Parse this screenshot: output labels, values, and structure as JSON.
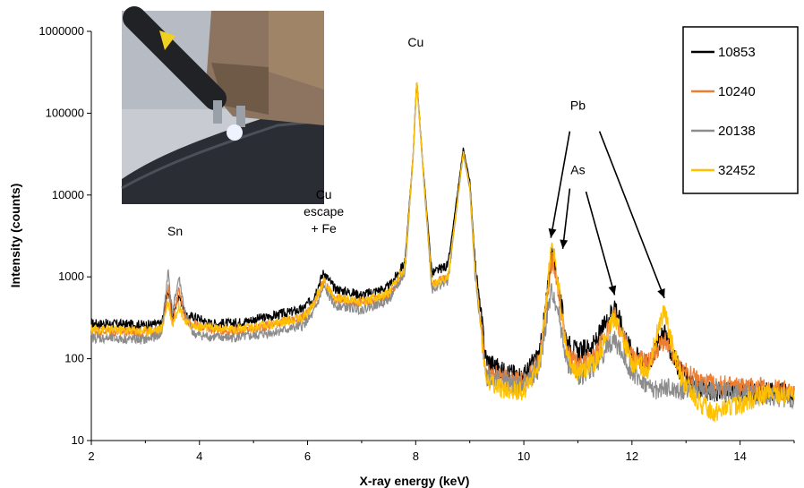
{
  "chart_data": {
    "type": "line",
    "xlabel": "X-ray energy (keV)",
    "ylabel": "Intensity (counts)",
    "xlim": [
      2,
      15
    ],
    "ylim": [
      10,
      1000000
    ],
    "yscale": "log",
    "x_ticks": [
      "2",
      "4",
      "6",
      "8",
      "10",
      "12",
      "14"
    ],
    "y_ticks": [
      "10",
      "100",
      "1000",
      "10000",
      "100000",
      "1000000"
    ],
    "legend_position": "top-right",
    "series": [
      {
        "name": "10853",
        "color": "#000000",
        "points": [
          [
            2.0,
            270
          ],
          [
            2.5,
            265
          ],
          [
            3.0,
            260
          ],
          [
            3.3,
            265
          ],
          [
            3.42,
            700
          ],
          [
            3.5,
            320
          ],
          [
            3.62,
            620
          ],
          [
            3.75,
            320
          ],
          [
            3.9,
            330
          ],
          [
            4.2,
            270
          ],
          [
            4.6,
            270
          ],
          [
            5.0,
            300
          ],
          [
            5.5,
            350
          ],
          [
            5.9,
            400
          ],
          [
            6.1,
            550
          ],
          [
            6.3,
            1150
          ],
          [
            6.5,
            720
          ],
          [
            7.0,
            600
          ],
          [
            7.5,
            750
          ],
          [
            7.8,
            1500
          ],
          [
            7.95,
            30000
          ],
          [
            8.02,
            265000
          ],
          [
            8.12,
            30000
          ],
          [
            8.3,
            1100
          ],
          [
            8.6,
            1400
          ],
          [
            8.88,
            37000
          ],
          [
            9.0,
            15000
          ],
          [
            9.1,
            1500
          ],
          [
            9.3,
            100
          ],
          [
            9.6,
            70
          ],
          [
            10.0,
            62
          ],
          [
            10.3,
            120
          ],
          [
            10.45,
            800
          ],
          [
            10.52,
            2300
          ],
          [
            10.62,
            900
          ],
          [
            10.8,
            160
          ],
          [
            11.0,
            120
          ],
          [
            11.3,
            150
          ],
          [
            11.55,
            300
          ],
          [
            11.68,
            480
          ],
          [
            11.8,
            260
          ],
          [
            12.0,
            120
          ],
          [
            12.3,
            85
          ],
          [
            12.5,
            160
          ],
          [
            12.6,
            230
          ],
          [
            12.7,
            130
          ],
          [
            12.9,
            70
          ],
          [
            13.2,
            45
          ],
          [
            13.5,
            40
          ],
          [
            14.0,
            38
          ],
          [
            14.5,
            42
          ],
          [
            15.0,
            36
          ]
        ]
      },
      {
        "name": "10240",
        "color": "#ed7d31",
        "points": [
          [
            2.0,
            220
          ],
          [
            2.5,
            215
          ],
          [
            3.0,
            210
          ],
          [
            3.3,
            220
          ],
          [
            3.42,
            750
          ],
          [
            3.5,
            280
          ],
          [
            3.62,
            680
          ],
          [
            3.75,
            300
          ],
          [
            3.9,
            260
          ],
          [
            4.2,
            230
          ],
          [
            4.6,
            220
          ],
          [
            5.0,
            230
          ],
          [
            5.5,
            280
          ],
          [
            5.9,
            310
          ],
          [
            6.1,
            430
          ],
          [
            6.3,
            880
          ],
          [
            6.5,
            540
          ],
          [
            7.0,
            480
          ],
          [
            7.5,
            580
          ],
          [
            7.8,
            1200
          ],
          [
            7.95,
            28000
          ],
          [
            8.02,
            250000
          ],
          [
            8.12,
            28000
          ],
          [
            8.3,
            800
          ],
          [
            8.6,
            1000
          ],
          [
            8.88,
            33000
          ],
          [
            9.0,
            13000
          ],
          [
            9.1,
            1200
          ],
          [
            9.3,
            70
          ],
          [
            9.6,
            58
          ],
          [
            10.0,
            52
          ],
          [
            10.3,
            100
          ],
          [
            10.45,
            700
          ],
          [
            10.52,
            1600
          ],
          [
            10.62,
            800
          ],
          [
            10.8,
            120
          ],
          [
            11.0,
            80
          ],
          [
            11.3,
            110
          ],
          [
            11.55,
            220
          ],
          [
            11.68,
            330
          ],
          [
            11.8,
            210
          ],
          [
            12.0,
            110
          ],
          [
            12.3,
            90
          ],
          [
            12.5,
            140
          ],
          [
            12.6,
            165
          ],
          [
            12.7,
            120
          ],
          [
            12.9,
            75
          ],
          [
            13.2,
            55
          ],
          [
            13.5,
            48
          ],
          [
            14.0,
            46
          ],
          [
            14.5,
            44
          ],
          [
            15.0,
            40
          ]
        ]
      },
      {
        "name": "20138",
        "color": "#8c8c8c",
        "points": [
          [
            2.0,
            180
          ],
          [
            2.5,
            175
          ],
          [
            3.0,
            170
          ],
          [
            3.3,
            200
          ],
          [
            3.42,
            1200
          ],
          [
            3.5,
            350
          ],
          [
            3.62,
            1000
          ],
          [
            3.75,
            320
          ],
          [
            3.9,
            200
          ],
          [
            4.2,
            185
          ],
          [
            4.6,
            180
          ],
          [
            5.0,
            190
          ],
          [
            5.5,
            220
          ],
          [
            5.9,
            250
          ],
          [
            6.1,
            350
          ],
          [
            6.3,
            750
          ],
          [
            6.5,
            450
          ],
          [
            7.0,
            400
          ],
          [
            7.5,
            520
          ],
          [
            7.8,
            1100
          ],
          [
            7.95,
            27000
          ],
          [
            8.02,
            240000
          ],
          [
            8.12,
            27000
          ],
          [
            8.3,
            700
          ],
          [
            8.6,
            900
          ],
          [
            8.88,
            32000
          ],
          [
            9.0,
            12000
          ],
          [
            9.1,
            1000
          ],
          [
            9.3,
            60
          ],
          [
            9.6,
            52
          ],
          [
            10.0,
            45
          ],
          [
            10.3,
            80
          ],
          [
            10.45,
            400
          ],
          [
            10.52,
            680
          ],
          [
            10.62,
            420
          ],
          [
            10.8,
            90
          ],
          [
            11.0,
            60
          ],
          [
            11.3,
            80
          ],
          [
            11.55,
            140
          ],
          [
            11.68,
            170
          ],
          [
            11.8,
            120
          ],
          [
            12.0,
            70
          ],
          [
            12.3,
            45
          ],
          [
            12.5,
            40
          ],
          [
            12.6,
            45
          ],
          [
            12.7,
            42
          ],
          [
            12.9,
            40
          ],
          [
            13.2,
            42
          ],
          [
            13.5,
            40
          ],
          [
            14.0,
            38
          ],
          [
            14.5,
            35
          ],
          [
            15.0,
            32
          ]
        ]
      },
      {
        "name": "32452",
        "color": "#ffc000",
        "points": [
          [
            2.0,
            230
          ],
          [
            2.5,
            225
          ],
          [
            3.0,
            220
          ],
          [
            3.3,
            230
          ],
          [
            3.42,
            500
          ],
          [
            3.5,
            260
          ],
          [
            3.62,
            450
          ],
          [
            3.75,
            270
          ],
          [
            3.9,
            250
          ],
          [
            4.2,
            240
          ],
          [
            4.6,
            230
          ],
          [
            5.0,
            240
          ],
          [
            5.5,
            280
          ],
          [
            5.9,
            320
          ],
          [
            6.1,
            450
          ],
          [
            6.3,
            900
          ],
          [
            6.5,
            560
          ],
          [
            7.0,
            500
          ],
          [
            7.5,
            620
          ],
          [
            7.8,
            1300
          ],
          [
            7.95,
            29000
          ],
          [
            8.02,
            255000
          ],
          [
            8.12,
            29000
          ],
          [
            8.3,
            800
          ],
          [
            8.6,
            1000
          ],
          [
            8.88,
            34000
          ],
          [
            9.0,
            13000
          ],
          [
            9.1,
            1200
          ],
          [
            9.3,
            55
          ],
          [
            9.6,
            42
          ],
          [
            10.0,
            40
          ],
          [
            10.3,
            90
          ],
          [
            10.45,
            900
          ],
          [
            10.52,
            2700
          ],
          [
            10.62,
            1000
          ],
          [
            10.8,
            110
          ],
          [
            11.0,
            70
          ],
          [
            11.3,
            90
          ],
          [
            11.55,
            200
          ],
          [
            11.68,
            330
          ],
          [
            11.8,
            200
          ],
          [
            12.0,
            90
          ],
          [
            12.3,
            75
          ],
          [
            12.5,
            250
          ],
          [
            12.6,
            370
          ],
          [
            12.7,
            200
          ],
          [
            12.9,
            60
          ],
          [
            13.2,
            30
          ],
          [
            13.5,
            22
          ],
          [
            14.0,
            28
          ],
          [
            14.5,
            38
          ],
          [
            15.0,
            34
          ]
        ]
      }
    ],
    "annotations": [
      {
        "text": "Sn",
        "x": 3.55,
        "y": 3200
      },
      {
        "text": "Cu",
        "x": 6.3,
        "y": 9000,
        "lines": [
          "Cu",
          "escape",
          "+ Fe"
        ]
      },
      {
        "text": "Cu",
        "x": 8.0,
        "y": 650000
      },
      {
        "text": "Pb",
        "x": 11.0,
        "y": 110000
      },
      {
        "text": "As",
        "x": 11.0,
        "y": 18000
      }
    ],
    "arrows": [
      {
        "label": "Pb",
        "from": [
          10.85,
          60000
        ],
        "to": [
          10.5,
          3000
        ]
      },
      {
        "label": "Pb",
        "from": [
          11.4,
          60000
        ],
        "to": [
          12.6,
          550
        ]
      },
      {
        "label": "As",
        "from": [
          10.85,
          12000
        ],
        "to": [
          10.72,
          2200
        ]
      },
      {
        "label": "As",
        "from": [
          11.15,
          11000
        ],
        "to": [
          11.68,
          600
        ]
      }
    ]
  }
}
